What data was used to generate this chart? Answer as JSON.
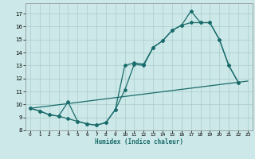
{
  "title": "",
  "xlabel": "Humidex (Indice chaleur)",
  "ylabel": "",
  "bg_color": "#cce8e8",
  "grid_color": "#aacccc",
  "line_color": "#1a6b6b",
  "xlim": [
    -0.5,
    23.5
  ],
  "ylim": [
    8.0,
    17.8
  ],
  "yticks": [
    8,
    9,
    10,
    11,
    12,
    13,
    14,
    15,
    16,
    17
  ],
  "xticks": [
    0,
    1,
    2,
    3,
    4,
    5,
    6,
    7,
    8,
    9,
    10,
    11,
    12,
    13,
    14,
    15,
    16,
    17,
    18,
    19,
    20,
    21,
    22,
    23
  ],
  "series1_x": [
    0,
    1,
    2,
    3,
    4,
    5,
    6,
    7,
    8,
    9,
    10,
    11,
    12,
    13,
    14,
    15,
    16,
    17,
    18,
    19,
    20,
    21,
    22
  ],
  "series1_y": [
    9.7,
    9.5,
    9.2,
    9.1,
    8.9,
    8.7,
    8.5,
    8.4,
    8.6,
    9.6,
    11.1,
    13.1,
    13.0,
    14.4,
    14.9,
    15.7,
    16.1,
    17.2,
    16.3,
    16.3,
    15.0,
    13.0,
    11.7
  ],
  "series2_x": [
    0,
    1,
    2,
    3,
    4,
    5,
    6,
    7,
    8,
    9,
    10,
    11,
    12,
    13,
    14,
    15,
    16,
    17,
    18,
    19,
    20,
    21,
    22
  ],
  "series2_y": [
    9.7,
    9.5,
    9.2,
    9.1,
    10.2,
    8.7,
    8.5,
    8.4,
    8.6,
    9.6,
    13.0,
    13.2,
    13.1,
    14.4,
    14.9,
    15.7,
    16.1,
    16.3,
    16.3,
    16.3,
    15.0,
    13.0,
    11.7
  ],
  "series3_x": [
    0,
    23
  ],
  "series3_y": [
    9.7,
    11.8
  ]
}
